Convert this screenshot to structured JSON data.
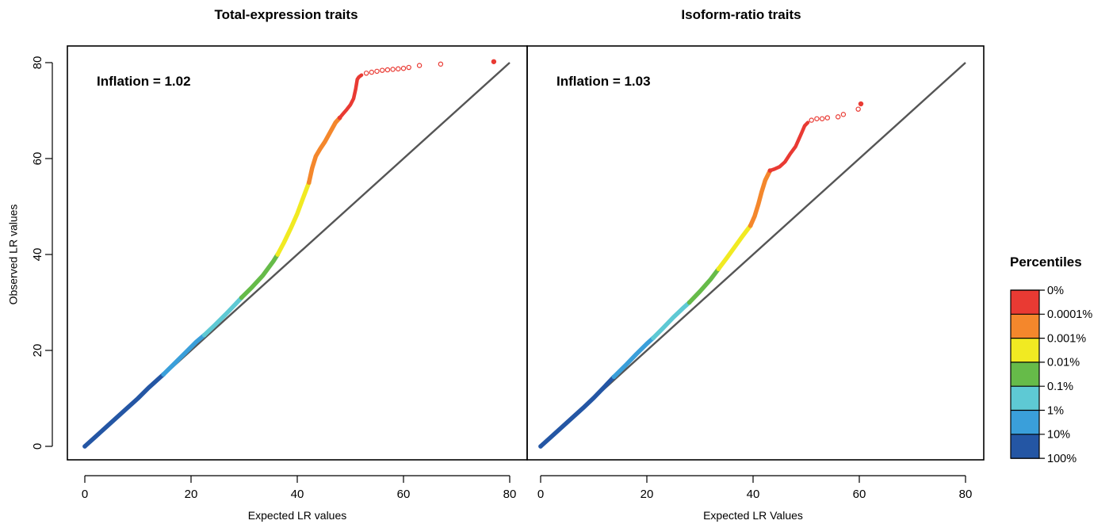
{
  "chart_data": [
    {
      "type": "scatter",
      "title": "Total-expression traits",
      "xlabel": "Expected LR values",
      "ylabel": "Observed LR values",
      "xlim": [
        0,
        80
      ],
      "ylim": [
        0,
        80
      ],
      "xticks": [
        "0",
        "20",
        "40",
        "60",
        "80"
      ],
      "yticks": [
        "0",
        "20",
        "40",
        "60",
        "80"
      ],
      "annotation": "Inflation = 1.02",
      "reference_line": {
        "from": [
          0,
          0
        ],
        "to": [
          80,
          80
        ]
      },
      "series": [
        {
          "color": "#2456a4",
          "x": [
            0,
            2,
            4,
            6,
            8,
            10,
            12,
            14.8
          ],
          "y": [
            0,
            2.0,
            4.0,
            6.0,
            8.0,
            10.0,
            12.2,
            15.0
          ]
        },
        {
          "color": "#3a9fda",
          "x": [
            14.8,
            17,
            19,
            21,
            22.5
          ],
          "y": [
            15.0,
            17.4,
            19.6,
            21.8,
            23.2
          ]
        },
        {
          "color": "#5ec9d4",
          "x": [
            22.5,
            24.5,
            26.5,
            28.5,
            29.5
          ],
          "y": [
            23.2,
            25.3,
            27.5,
            29.8,
            31.0
          ]
        },
        {
          "color": "#66bb49",
          "x": [
            29.5,
            31.5,
            33.5,
            35.5,
            36.3
          ],
          "y": [
            31.0,
            33.2,
            35.6,
            38.6,
            40.0
          ]
        },
        {
          "color": "#f1ea22",
          "x": [
            36.3,
            37.5,
            38.8,
            40.0,
            41.0,
            42.2
          ],
          "y": [
            40.0,
            42.5,
            45.5,
            48.5,
            51.5,
            55.0
          ]
        },
        {
          "color": "#f4872c",
          "x": [
            42.2,
            42.8,
            43.5,
            44.3,
            45.2,
            46.2,
            47.2,
            48.0
          ],
          "y": [
            55.0,
            58.0,
            60.5,
            62.0,
            63.5,
            65.5,
            67.5,
            68.5
          ]
        },
        {
          "color": "#e93a33",
          "x": [
            48.0,
            48.6,
            49.3,
            50.0,
            50.6,
            51.0,
            51.3,
            51.6,
            52.1,
            53,
            54,
            55,
            56,
            57,
            58,
            59,
            60,
            61,
            63,
            67,
            77
          ],
          "y": [
            68.5,
            69.3,
            70.2,
            71.2,
            72.5,
            74.5,
            76.5,
            77.0,
            77.4,
            77.8,
            78.0,
            78.2,
            78.4,
            78.5,
            78.6,
            78.7,
            78.8,
            79.0,
            79.4,
            79.7,
            80.2
          ]
        }
      ]
    },
    {
      "type": "scatter",
      "title": "Isoform-ratio traits",
      "xlabel": "Expected LR Values",
      "ylabel": "",
      "xlim": [
        0,
        80
      ],
      "ylim": [
        0,
        80
      ],
      "xticks": [
        "0",
        "20",
        "40",
        "60",
        "80"
      ],
      "annotation": "Inflation = 1.03",
      "reference_line": {
        "from": [
          0,
          0
        ],
        "to": [
          80,
          80
        ]
      },
      "series": [
        {
          "color": "#2456a4",
          "x": [
            0,
            2,
            4,
            6,
            8,
            10,
            12,
            13.8
          ],
          "y": [
            0,
            2.0,
            4.0,
            6.0,
            8.0,
            10.1,
            12.4,
            14.5
          ]
        },
        {
          "color": "#3a9fda",
          "x": [
            13.8,
            16,
            18,
            20,
            21.2
          ],
          "y": [
            14.5,
            16.9,
            19.2,
            21.4,
            22.6
          ]
        },
        {
          "color": "#5ec9d4",
          "x": [
            21.2,
            23,
            25,
            27,
            28
          ],
          "y": [
            22.6,
            24.6,
            26.9,
            29.0,
            30.0
          ]
        },
        {
          "color": "#66bb49",
          "x": [
            28,
            30,
            32,
            33.5
          ],
          "y": [
            30.0,
            32.3,
            34.8,
            37.0
          ]
        },
        {
          "color": "#f1ea22",
          "x": [
            33.5,
            35,
            36.5,
            38,
            39.5
          ],
          "y": [
            37.0,
            39.2,
            41.5,
            43.8,
            46.0
          ]
        },
        {
          "color": "#f4872c",
          "x": [
            39.5,
            40.3,
            41.0,
            41.6,
            42.3,
            43.2
          ],
          "y": [
            46.0,
            48.0,
            50.5,
            53.0,
            55.5,
            57.5
          ]
        },
        {
          "color": "#e93a33",
          "x": [
            43.2,
            44.0,
            45.0,
            46.0,
            47.0,
            48.0,
            48.6,
            49.2,
            49.7,
            50.3,
            51,
            52,
            53,
            54,
            56,
            57,
            59.8,
            60.3
          ],
          "y": [
            57.5,
            57.8,
            58.3,
            59.3,
            61.0,
            62.5,
            64.0,
            65.5,
            66.8,
            67.5,
            68.0,
            68.3,
            68.3,
            68.5,
            68.7,
            69.2,
            70.3,
            71.4
          ]
        }
      ]
    }
  ],
  "legend": {
    "title": "Percentiles",
    "colors": [
      "#e93a33",
      "#f4872c",
      "#f1ea22",
      "#66bb49",
      "#5ec9d4",
      "#3a9fda",
      "#2456a4"
    ],
    "labels": [
      "0%",
      "0.0001%",
      "0.001%",
      "0.01%",
      "0.1%",
      "1%",
      "10%",
      "100%"
    ]
  }
}
